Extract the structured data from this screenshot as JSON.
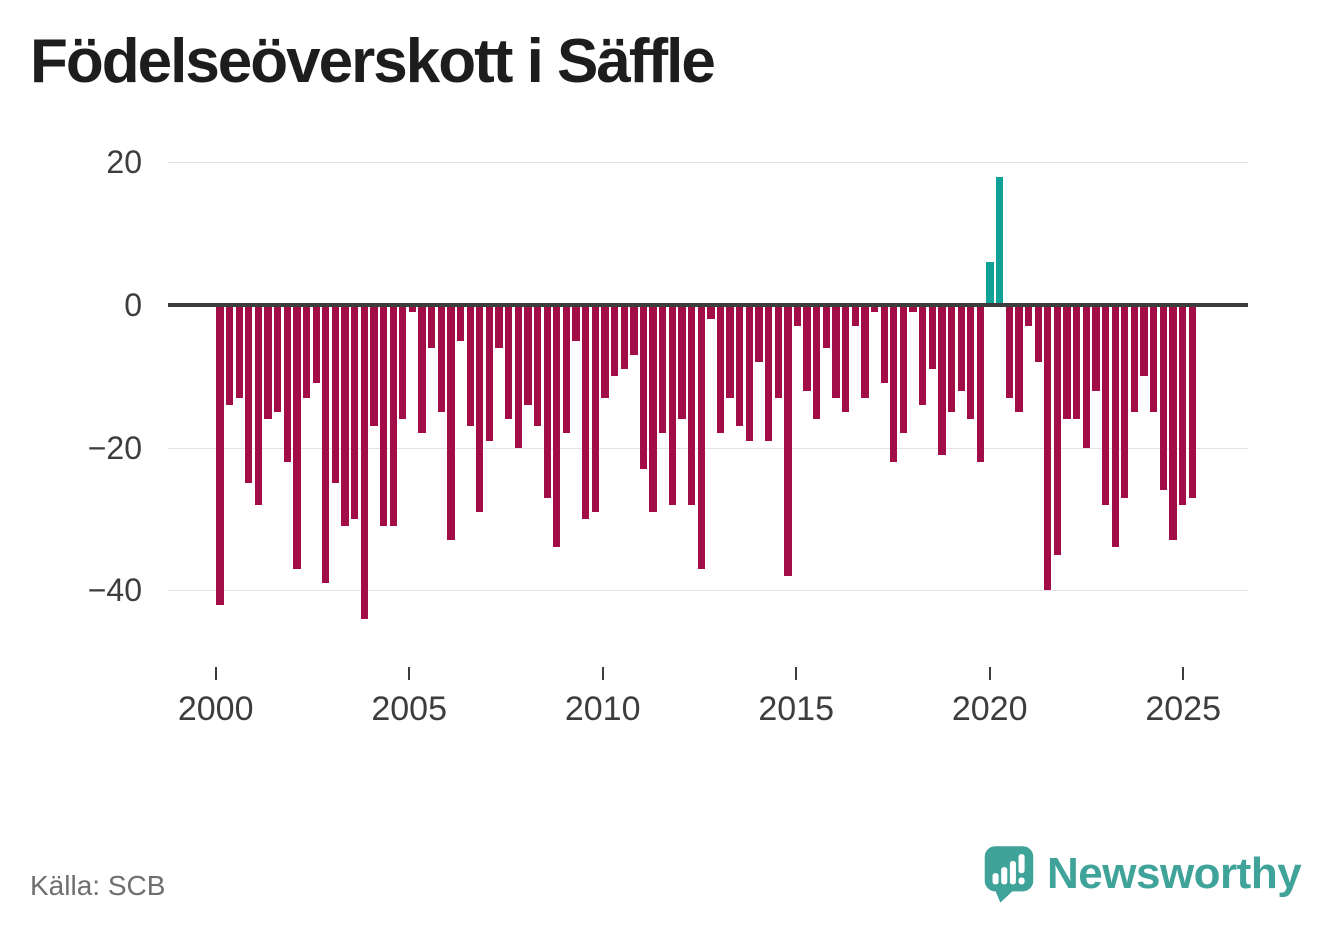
{
  "title": "Födelseöverskott i Säffle",
  "source": "Källa: SCB",
  "logo": {
    "brand": "Newsworthy",
    "icon": "bar-chart-speech-bubble-icon"
  },
  "colors": {
    "negative_bar": "#a20d48",
    "positive_bar": "#10a296",
    "zero_axis": "#3d3d3d",
    "gridline": "#e3e3e3",
    "tick_text": "#3d3d3d",
    "source_text": "#6f6f6f",
    "brand_teal": "#3fa39a",
    "title_text": "#1d1d1d"
  },
  "chart_data": {
    "type": "bar",
    "title": "Födelseöverskott i Säffle",
    "frequency": "quarterly",
    "start_year": 2000,
    "start_quarter": 1,
    "x_tick_labels": [
      "2000",
      "2005",
      "2010",
      "2015",
      "2020",
      "2025"
    ],
    "y_ticks": [
      20,
      0,
      -20,
      -40
    ],
    "y_tick_labels": [
      "20",
      "0",
      "−20",
      "−40"
    ],
    "ylim": [
      -46,
      22
    ],
    "grid": "horizontal",
    "legend": "none",
    "values": [
      -42,
      -14,
      -13,
      -25,
      -28,
      -16,
      -15,
      -22,
      -37,
      -13,
      -11,
      -39,
      -25,
      -31,
      -30,
      -44,
      -17,
      -31,
      -31,
      -16,
      -1,
      -18,
      -6,
      -15,
      -33,
      -5,
      -17,
      -29,
      -19,
      -6,
      -16,
      -20,
      -14,
      -17,
      -27,
      -34,
      -18,
      -5,
      -30,
      -29,
      -13,
      -10,
      -9,
      -7,
      -23,
      -29,
      -18,
      -28,
      -16,
      -28,
      -37,
      -2,
      -18,
      -13,
      -17,
      -19,
      -8,
      -19,
      -13,
      -38,
      -3,
      -12,
      -16,
      -6,
      -13,
      -15,
      -3,
      -13,
      -1,
      -11,
      -22,
      -18,
      -1,
      -14,
      -9,
      -21,
      -15,
      -12,
      -16,
      -22,
      6,
      18,
      -13,
      -15,
      -3,
      -8,
      -40,
      -35,
      -16,
      -16,
      -20,
      -12,
      -28,
      -34,
      -27,
      -15,
      -10,
      -15,
      -26,
      -33,
      -28,
      -27
    ]
  }
}
